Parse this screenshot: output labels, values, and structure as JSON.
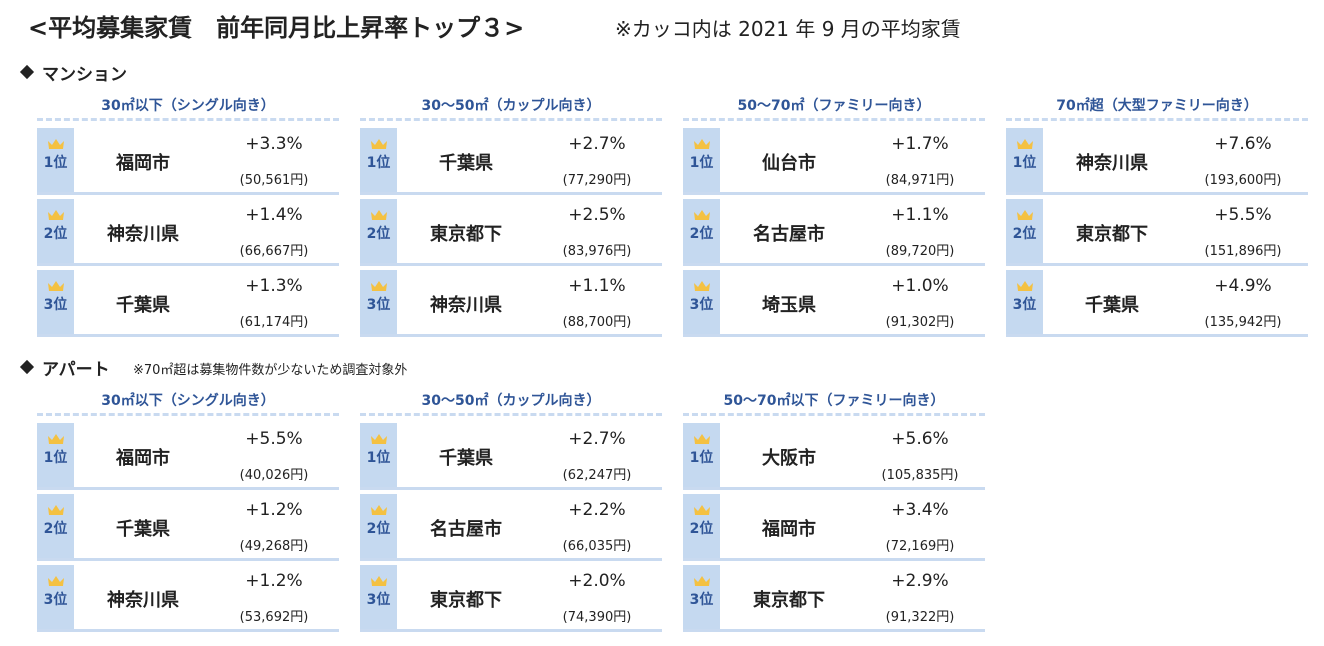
{
  "header": {
    "title": "<平均募集家賃　前年同月比上昇率トップ３>",
    "subtitle": "※カッコ内は 2021 年 9 月の平均家賃"
  },
  "sections": [
    {
      "label": "マンション",
      "groups": [
        {
          "header": "30㎡以下（シングル向き）",
          "rows": [
            {
              "rank": "1位",
              "city": "福岡市",
              "rate": "+3.3%",
              "rent": "(50,561円)"
            },
            {
              "rank": "2位",
              "city": "神奈川県",
              "rate": "+1.4%",
              "rent": "(66,667円)"
            },
            {
              "rank": "3位",
              "city": "千葉県",
              "rate": "+1.3%",
              "rent": "(61,174円)"
            }
          ]
        },
        {
          "header": "30～50㎡（カップル向き）",
          "rows": [
            {
              "rank": "1位",
              "city": "千葉県",
              "rate": "+2.7%",
              "rent": "(77,290円)"
            },
            {
              "rank": "2位",
              "city": "東京都下",
              "rate": "+2.5%",
              "rent": "(83,976円)"
            },
            {
              "rank": "3位",
              "city": "神奈川県",
              "rate": "+1.1%",
              "rent": "(88,700円)"
            }
          ]
        },
        {
          "header": "50～70㎡（ファミリー向き）",
          "rows": [
            {
              "rank": "1位",
              "city": "仙台市",
              "rate": "+1.7%",
              "rent": "(84,971円)"
            },
            {
              "rank": "2位",
              "city": "名古屋市",
              "rate": "+1.1%",
              "rent": "(89,720円)"
            },
            {
              "rank": "3位",
              "city": "埼玉県",
              "rate": "+1.0%",
              "rent": "(91,302円)"
            }
          ]
        },
        {
          "header": "70㎡超（大型ファミリー向き）",
          "rows": [
            {
              "rank": "1位",
              "city": "神奈川県",
              "rate": "+7.6%",
              "rent": "(193,600円)"
            },
            {
              "rank": "2位",
              "city": "東京都下",
              "rate": "+5.5%",
              "rent": "(151,896円)"
            },
            {
              "rank": "3位",
              "city": "千葉県",
              "rate": "+4.9%",
              "rent": "(135,942円)"
            }
          ]
        }
      ]
    },
    {
      "label": "アパート",
      "note": "※70㎡超は募集物件数が少ないため調査対象外",
      "groups": [
        {
          "header": "30㎡以下（シングル向き）",
          "rows": [
            {
              "rank": "1位",
              "city": "福岡市",
              "rate": "+5.5%",
              "rent": "(40,026円)"
            },
            {
              "rank": "2位",
              "city": "千葉県",
              "rate": "+1.2%",
              "rent": "(49,268円)"
            },
            {
              "rank": "3位",
              "city": "神奈川県",
              "rate": "+1.2%",
              "rent": "(53,692円)"
            }
          ]
        },
        {
          "header": "30～50㎡（カップル向き）",
          "rows": [
            {
              "rank": "1位",
              "city": "千葉県",
              "rate": "+2.7%",
              "rent": "(62,247円)"
            },
            {
              "rank": "2位",
              "city": "名古屋市",
              "rate": "+2.2%",
              "rent": "(66,035円)"
            },
            {
              "rank": "3位",
              "city": "東京都下",
              "rate": "+2.0%",
              "rent": "(74,390円)"
            }
          ]
        },
        {
          "header": "50～70㎡以下（ファミリー向き）",
          "rows": [
            {
              "rank": "1位",
              "city": "大阪市",
              "rate": "+5.6%",
              "rent": "(105,835円)"
            },
            {
              "rank": "2位",
              "city": "福岡市",
              "rate": "+3.4%",
              "rent": "(72,169円)"
            },
            {
              "rank": "3位",
              "city": "東京都下",
              "rate": "+2.9%",
              "rent": "(91,322円)"
            }
          ]
        }
      ]
    }
  ]
}
